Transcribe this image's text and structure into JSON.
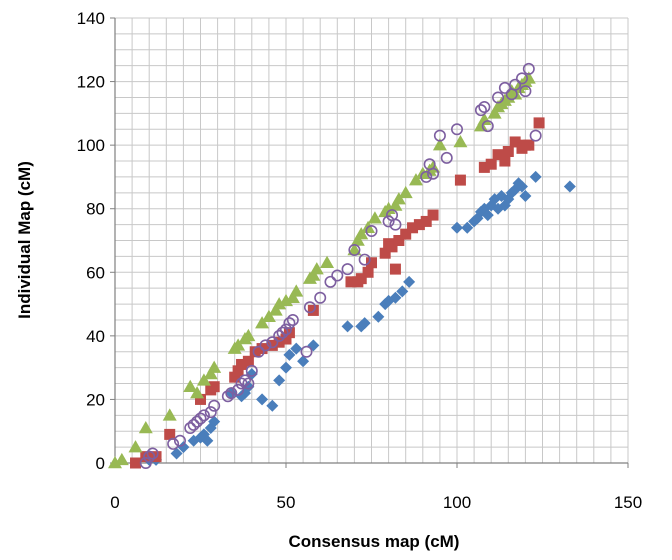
{
  "chart_data": {
    "type": "scatter",
    "title": "",
    "xlabel": "Consensus map (cM)",
    "ylabel": "Individual Map (cM)",
    "xlim": [
      0,
      150
    ],
    "ylim": [
      0,
      140
    ],
    "x_ticks": [
      "0",
      "50",
      "100",
      "150"
    ],
    "y_ticks": [
      "0",
      "20",
      "40",
      "60",
      "80",
      "100",
      "120",
      "140"
    ],
    "x_tick_values": [
      0,
      50,
      100,
      150
    ],
    "y_tick_values": [
      0,
      20,
      40,
      60,
      80,
      100,
      120,
      140
    ],
    "grid": true,
    "legend": "none",
    "series": [
      {
        "marker": "diamond",
        "color": "#4a7ebb",
        "points": [
          [
            10,
            1
          ],
          [
            12,
            1
          ],
          [
            18,
            3
          ],
          [
            20,
            5
          ],
          [
            23,
            7
          ],
          [
            25,
            8
          ],
          [
            26,
            9
          ],
          [
            27,
            7
          ],
          [
            28,
            11
          ],
          [
            29,
            13
          ],
          [
            34,
            22
          ],
          [
            37,
            21
          ],
          [
            38,
            22
          ],
          [
            39,
            24
          ],
          [
            40,
            28
          ],
          [
            43,
            20
          ],
          [
            46,
            18
          ],
          [
            48,
            26
          ],
          [
            50,
            30
          ],
          [
            51,
            34
          ],
          [
            53,
            36
          ],
          [
            55,
            32
          ],
          [
            58,
            37
          ],
          [
            68,
            43
          ],
          [
            72,
            43
          ],
          [
            73,
            44
          ],
          [
            77,
            46
          ],
          [
            79,
            50
          ],
          [
            80,
            51
          ],
          [
            82,
            52
          ],
          [
            84,
            54
          ],
          [
            86,
            57
          ],
          [
            100,
            74
          ],
          [
            103,
            74
          ],
          [
            105,
            76
          ],
          [
            106,
            77
          ],
          [
            107,
            79
          ],
          [
            108,
            80
          ],
          [
            109,
            78
          ],
          [
            110,
            81
          ],
          [
            111,
            83
          ],
          [
            112,
            80
          ],
          [
            113,
            84
          ],
          [
            114,
            81
          ],
          [
            115,
            83
          ],
          [
            116,
            85
          ],
          [
            117,
            86
          ],
          [
            118,
            88
          ],
          [
            119,
            87
          ],
          [
            120,
            84
          ],
          [
            123,
            90
          ],
          [
            133,
            87
          ]
        ]
      },
      {
        "marker": "square",
        "color": "#be4b48",
        "points": [
          [
            6,
            0
          ],
          [
            9,
            2
          ],
          [
            12,
            2
          ],
          [
            16,
            9
          ],
          [
            25,
            20
          ],
          [
            28,
            23
          ],
          [
            29,
            24
          ],
          [
            35,
            27
          ],
          [
            36,
            29
          ],
          [
            37,
            31
          ],
          [
            39,
            32
          ],
          [
            41,
            35
          ],
          [
            43,
            36
          ],
          [
            46,
            37
          ],
          [
            48,
            38
          ],
          [
            50,
            39
          ],
          [
            51,
            41
          ],
          [
            58,
            48
          ],
          [
            69,
            57
          ],
          [
            71,
            57
          ],
          [
            72,
            58
          ],
          [
            74,
            60
          ],
          [
            75,
            63
          ],
          [
            79,
            66
          ],
          [
            80,
            69
          ],
          [
            81,
            68
          ],
          [
            82,
            61
          ],
          [
            83,
            70
          ],
          [
            85,
            72
          ],
          [
            87,
            74
          ],
          [
            89,
            75
          ],
          [
            91,
            76
          ],
          [
            93,
            78
          ],
          [
            101,
            89
          ],
          [
            108,
            93
          ],
          [
            110,
            94
          ],
          [
            112,
            97
          ],
          [
            114,
            95
          ],
          [
            115,
            98
          ],
          [
            117,
            101
          ],
          [
            119,
            99
          ],
          [
            120,
            100
          ],
          [
            121,
            100
          ],
          [
            124,
            107
          ]
        ]
      },
      {
        "marker": "triangle",
        "color": "#98b954",
        "points": [
          [
            0,
            0
          ],
          [
            2,
            1
          ],
          [
            6,
            5
          ],
          [
            9,
            11
          ],
          [
            16,
            15
          ],
          [
            22,
            24
          ],
          [
            24,
            22
          ],
          [
            26,
            26
          ],
          [
            28,
            28
          ],
          [
            29,
            30
          ],
          [
            35,
            36
          ],
          [
            36,
            37
          ],
          [
            38,
            39
          ],
          [
            39,
            40
          ],
          [
            43,
            44
          ],
          [
            45,
            46
          ],
          [
            47,
            48
          ],
          [
            48,
            50
          ],
          [
            50,
            51
          ],
          [
            52,
            52
          ],
          [
            53,
            54
          ],
          [
            57,
            58
          ],
          [
            58,
            59
          ],
          [
            59,
            61
          ],
          [
            62,
            63
          ],
          [
            70,
            67
          ],
          [
            71,
            70
          ],
          [
            72,
            72
          ],
          [
            74,
            74
          ],
          [
            76,
            77
          ],
          [
            79,
            79
          ],
          [
            80,
            80
          ],
          [
            82,
            81
          ],
          [
            83,
            83
          ],
          [
            85,
            85
          ],
          [
            88,
            89
          ],
          [
            90,
            91
          ],
          [
            92,
            92
          ],
          [
            93,
            93
          ],
          [
            95,
            100
          ],
          [
            101,
            101
          ],
          [
            107,
            106
          ],
          [
            108,
            108
          ],
          [
            111,
            110
          ],
          [
            112,
            112
          ],
          [
            113,
            113
          ],
          [
            114,
            114
          ],
          [
            115,
            115
          ],
          [
            116,
            117
          ],
          [
            117,
            116
          ],
          [
            118,
            118
          ],
          [
            119,
            119
          ],
          [
            120,
            120
          ],
          [
            121,
            121
          ]
        ]
      },
      {
        "marker": "circle-open",
        "color": "#7d5fa0",
        "points": [
          [
            9,
            0
          ],
          [
            10,
            2
          ],
          [
            11,
            3
          ],
          [
            17,
            6
          ],
          [
            19,
            7
          ],
          [
            22,
            11
          ],
          [
            23,
            12
          ],
          [
            24,
            13
          ],
          [
            25,
            14
          ],
          [
            26,
            15
          ],
          [
            28,
            16
          ],
          [
            29,
            18
          ],
          [
            33,
            21
          ],
          [
            34,
            22
          ],
          [
            36,
            23
          ],
          [
            37,
            25
          ],
          [
            38,
            26
          ],
          [
            39,
            25
          ],
          [
            40,
            29
          ],
          [
            42,
            35
          ],
          [
            44,
            37
          ],
          [
            46,
            38
          ],
          [
            48,
            40
          ],
          [
            49,
            41
          ],
          [
            50,
            42
          ],
          [
            51,
            44
          ],
          [
            52,
            45
          ],
          [
            56,
            35
          ],
          [
            57,
            49
          ],
          [
            60,
            52
          ],
          [
            63,
            57
          ],
          [
            65,
            59
          ],
          [
            68,
            61
          ],
          [
            70,
            67
          ],
          [
            73,
            64
          ],
          [
            75,
            73
          ],
          [
            80,
            76
          ],
          [
            81,
            78
          ],
          [
            82,
            75
          ],
          [
            91,
            90
          ],
          [
            92,
            94
          ],
          [
            93,
            91
          ],
          [
            95,
            103
          ],
          [
            97,
            96
          ],
          [
            100,
            105
          ],
          [
            107,
            111
          ],
          [
            108,
            112
          ],
          [
            109,
            106
          ],
          [
            112,
            115
          ],
          [
            114,
            118
          ],
          [
            116,
            116
          ],
          [
            117,
            119
          ],
          [
            119,
            121
          ],
          [
            120,
            117
          ],
          [
            121,
            124
          ],
          [
            123,
            103
          ]
        ]
      }
    ]
  }
}
